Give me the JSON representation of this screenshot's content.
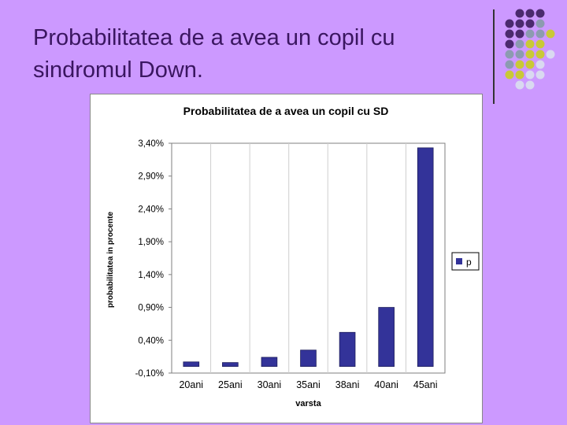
{
  "slide": {
    "title_line1": "Probabilitatea de a avea un copil cu",
    "title_line2": "sindromul Down."
  },
  "colors": {
    "background": "#cc99ff",
    "title_text": "#3a1660",
    "bar": "#333399",
    "dot_purple": "#4b2a6e",
    "dot_gray": "#8c9bb0",
    "dot_yellow": "#c9c936",
    "dot_light": "#d9d9f0"
  },
  "decoration": {
    "icon": "dot-grid-icon"
  },
  "chart_data": {
    "type": "bar",
    "title": "Probabilitatea de a avea un copil cu SD",
    "xlabel": "varsta",
    "ylabel": "probabilitatea in procente",
    "categories": [
      "20ani",
      "25ani",
      "30ani",
      "35ani",
      "38ani",
      "40ani",
      "45ani"
    ],
    "series": [
      {
        "name": "p",
        "values": [
          0.07,
          0.06,
          0.14,
          0.25,
          0.52,
          0.9,
          3.33
        ]
      }
    ],
    "ylim": [
      -0.1,
      3.4
    ],
    "yticks": [
      -0.1,
      0.4,
      0.9,
      1.4,
      1.9,
      2.4,
      2.9,
      3.4
    ],
    "ytick_labels": [
      "-0,10%",
      "0,40%",
      "0,90%",
      "1,40%",
      "1,90%",
      "2,40%",
      "2,90%",
      "3,40%"
    ],
    "grid": "vertical lines between categories",
    "legend": "right"
  }
}
